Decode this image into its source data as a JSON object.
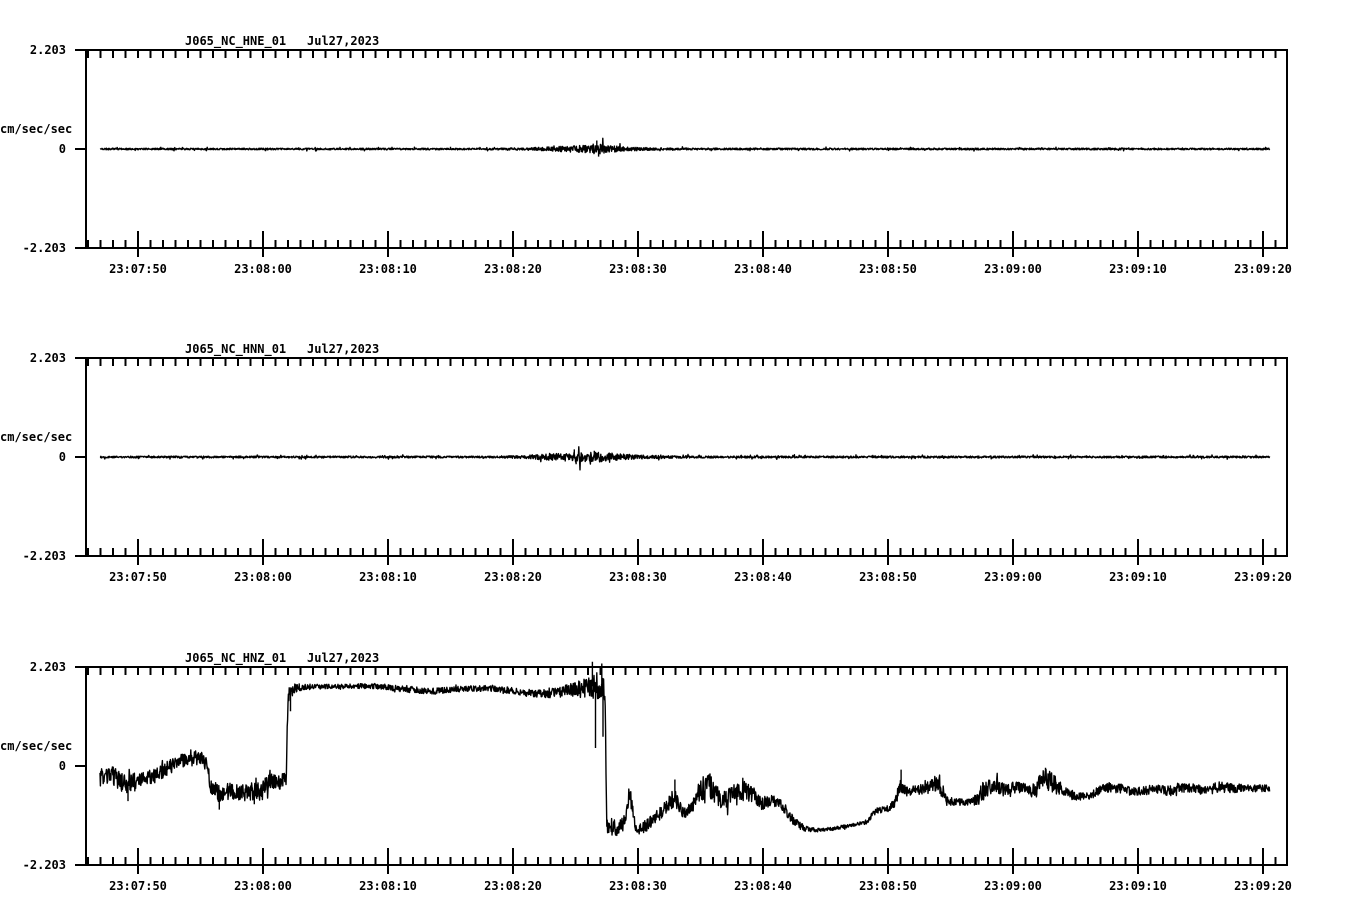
{
  "figure": {
    "background": "#ffffff",
    "ink": "#000000"
  },
  "chart_data": [
    {
      "type": "line",
      "station": "J065_NC_HNE_01",
      "date": "Jul27,2023",
      "ylabel": "cm/sec/sec",
      "yticks": [
        "2.203",
        "0",
        "-2.203"
      ],
      "ylim": [
        -2.203,
        2.203
      ],
      "xticklabels": [
        "23:07:50",
        "23:08:00",
        "23:08:10",
        "23:08:20",
        "23:08:30",
        "23:08:40",
        "23:08:50",
        "23:09:00",
        "23:09:10",
        "23:09:20"
      ],
      "trace_t_range": [
        -3.0,
        90.6
      ],
      "envelope": [
        [
          -3,
          0,
          0.018
        ],
        [
          28,
          0,
          0.018
        ],
        [
          31,
          0,
          0.028
        ],
        [
          32.5,
          0,
          0.045
        ],
        [
          33.8,
          0,
          0.06
        ],
        [
          35,
          0,
          0.075
        ],
        [
          36,
          0,
          0.09
        ],
        [
          36.8,
          0,
          0.13
        ],
        [
          37.6,
          0,
          0.08
        ],
        [
          38.6,
          0,
          0.055
        ],
        [
          39.8,
          0,
          0.038
        ],
        [
          41.5,
          0,
          0.026
        ],
        [
          44,
          0,
          0.02
        ],
        [
          90.6,
          0,
          0.018
        ]
      ],
      "spikes": [
        [
          36.7,
          0.19
        ],
        [
          36.85,
          -0.17
        ],
        [
          25.0,
          0.05
        ],
        [
          10.2,
          -0.05
        ]
      ]
    },
    {
      "type": "line",
      "station": "J065_NC_HNN_01",
      "date": "Jul27,2023",
      "ylabel": "cm/sec/sec",
      "yticks": [
        "2.203",
        "0",
        "-2.203"
      ],
      "ylim": [
        -2.203,
        2.203
      ],
      "xticklabels": [
        "23:07:50",
        "23:08:00",
        "23:08:10",
        "23:08:20",
        "23:08:30",
        "23:08:40",
        "23:08:50",
        "23:09:00",
        "23:09:10",
        "23:09:20"
      ],
      "trace_t_range": [
        -3.0,
        90.6
      ],
      "envelope": [
        [
          -3,
          0,
          0.02
        ],
        [
          28,
          0,
          0.02
        ],
        [
          30.5,
          0,
          0.032
        ],
        [
          32,
          0,
          0.055
        ],
        [
          33.3,
          0,
          0.075
        ],
        [
          34.5,
          0,
          0.09
        ],
        [
          35.2,
          0,
          0.13
        ],
        [
          36,
          0,
          0.095
        ],
        [
          36.7,
          0,
          0.12
        ],
        [
          37.7,
          0,
          0.09
        ],
        [
          38.8,
          0,
          0.065
        ],
        [
          40.2,
          0,
          0.045
        ],
        [
          42.5,
          0,
          0.03
        ],
        [
          46,
          0,
          0.022
        ],
        [
          90.6,
          0,
          0.02
        ]
      ],
      "spikes": [
        [
          34.9,
          0.17
        ],
        [
          35.05,
          -0.16
        ],
        [
          36.5,
          0.14
        ],
        [
          13.5,
          0.05
        ]
      ]
    },
    {
      "type": "line",
      "station": "J065_NC_HNZ_01",
      "date": "Jul27,2023",
      "ylabel": "cm/sec/sec",
      "yticks": [
        "2.203",
        "0",
        "-2.203"
      ],
      "ylim": [
        -2.203,
        2.203
      ],
      "xticklabels": [
        "23:07:50",
        "23:08:00",
        "23:08:10",
        "23:08:20",
        "23:08:30",
        "23:08:40",
        "23:08:50",
        "23:09:00",
        "23:09:10",
        "23:09:20"
      ],
      "trace_t_range": [
        -3.0,
        90.6
      ],
      "envelope": [
        [
          -3,
          -0.25,
          0.2
        ],
        [
          -2,
          -0.22,
          0.2
        ],
        [
          -1,
          -0.42,
          0.22
        ],
        [
          -0.5,
          -0.35,
          0.18
        ],
        [
          0.5,
          -0.28,
          0.16
        ],
        [
          1.5,
          -0.2,
          0.16
        ],
        [
          2.5,
          -0.02,
          0.16
        ],
        [
          3.5,
          0.12,
          0.16
        ],
        [
          4.3,
          0.22,
          0.16
        ],
        [
          5,
          0.15,
          0.18
        ],
        [
          5.5,
          0.05,
          0.15
        ],
        [
          5.8,
          -0.45,
          0.18
        ],
        [
          6.5,
          -0.62,
          0.2
        ],
        [
          7.5,
          -0.55,
          0.18
        ],
        [
          8.5,
          -0.6,
          0.2
        ],
        [
          9.5,
          -0.55,
          0.2
        ],
        [
          10.4,
          -0.4,
          0.2
        ],
        [
          11,
          -0.32,
          0.18
        ],
        [
          11.6,
          -0.35,
          0.18
        ],
        [
          11.85,
          -0.3,
          0.15
        ],
        [
          12,
          1.55,
          0.18
        ],
        [
          12.5,
          1.73,
          0.1
        ],
        [
          13.5,
          1.76,
          0.06
        ],
        [
          16,
          1.77,
          0.05
        ],
        [
          19,
          1.78,
          0.06
        ],
        [
          21.5,
          1.71,
          0.07
        ],
        [
          23.5,
          1.66,
          0.07
        ],
        [
          26,
          1.72,
          0.06
        ],
        [
          28.5,
          1.73,
          0.07
        ],
        [
          30,
          1.67,
          0.07
        ],
        [
          31.5,
          1.6,
          0.08
        ],
        [
          33,
          1.62,
          0.1
        ],
        [
          34.5,
          1.68,
          0.14
        ],
        [
          35.5,
          1.72,
          0.2
        ],
        [
          36.3,
          1.77,
          0.28
        ],
        [
          37,
          1.8,
          0.3
        ],
        [
          37.35,
          1.72,
          0.25
        ],
        [
          37.5,
          -1.35,
          0.25
        ],
        [
          38.2,
          -1.42,
          0.2
        ],
        [
          38.9,
          -1.25,
          0.16
        ],
        [
          39.35,
          -0.58,
          0.16
        ],
        [
          39.7,
          -1.3,
          0.18
        ],
        [
          40.2,
          -1.45,
          0.16
        ],
        [
          41,
          -1.25,
          0.14
        ],
        [
          41.8,
          -1.05,
          0.14
        ],
        [
          42.9,
          -0.72,
          0.22
        ],
        [
          43.6,
          -1.05,
          0.12
        ],
        [
          44.3,
          -0.95,
          0.14
        ],
        [
          45,
          -0.52,
          0.26
        ],
        [
          45.8,
          -0.45,
          0.28
        ],
        [
          46.5,
          -0.75,
          0.2
        ],
        [
          47.1,
          -0.78,
          0.22
        ],
        [
          47.7,
          -0.55,
          0.2
        ],
        [
          48.4,
          -0.55,
          0.22
        ],
        [
          49.1,
          -0.62,
          0.2
        ],
        [
          49.9,
          -0.85,
          0.14
        ],
        [
          50.7,
          -0.75,
          0.12
        ],
        [
          51.6,
          -0.9,
          0.12
        ],
        [
          52.4,
          -1.2,
          0.1
        ],
        [
          53.2,
          -1.38,
          0.07
        ],
        [
          54.3,
          -1.43,
          0.04
        ],
        [
          55.5,
          -1.4,
          0.04
        ],
        [
          57,
          -1.32,
          0.04
        ],
        [
          58.4,
          -1.24,
          0.05
        ],
        [
          58.9,
          -1,
          0.06
        ],
        [
          60,
          -0.95,
          0.07
        ],
        [
          60.6,
          -0.8,
          0.1
        ],
        [
          61,
          -0.42,
          0.22
        ],
        [
          61.4,
          -0.55,
          0.12
        ],
        [
          62.5,
          -0.53,
          0.1
        ],
        [
          63.2,
          -0.48,
          0.14
        ],
        [
          63.9,
          -0.4,
          0.22
        ],
        [
          64.3,
          -0.5,
          0.18
        ],
        [
          64.7,
          -0.78,
          0.1
        ],
        [
          65.5,
          -0.8,
          0.08
        ],
        [
          66.5,
          -0.82,
          0.08
        ],
        [
          67.1,
          -0.74,
          0.12
        ],
        [
          67.6,
          -0.55,
          0.2
        ],
        [
          68.2,
          -0.48,
          0.18
        ],
        [
          68.8,
          -0.44,
          0.18
        ],
        [
          69.4,
          -0.55,
          0.14
        ],
        [
          70.1,
          -0.48,
          0.14
        ],
        [
          70.8,
          -0.5,
          0.12
        ],
        [
          71.5,
          -0.55,
          0.14
        ],
        [
          72.2,
          -0.36,
          0.24
        ],
        [
          72.9,
          -0.3,
          0.26
        ],
        [
          73.5,
          -0.45,
          0.18
        ],
        [
          74.2,
          -0.6,
          0.12
        ],
        [
          75,
          -0.66,
          0.1
        ],
        [
          76,
          -0.68,
          0.08
        ],
        [
          76.8,
          -0.56,
          0.1
        ],
        [
          77.6,
          -0.46,
          0.12
        ],
        [
          78.5,
          -0.5,
          0.1
        ],
        [
          79.5,
          -0.56,
          0.1
        ],
        [
          80.5,
          -0.55,
          0.1
        ],
        [
          81.5,
          -0.5,
          0.1
        ],
        [
          82.5,
          -0.55,
          0.12
        ],
        [
          83.5,
          -0.48,
          0.1
        ],
        [
          84.5,
          -0.5,
          0.1
        ],
        [
          85.5,
          -0.55,
          0.1
        ],
        [
          86.5,
          -0.46,
          0.12
        ],
        [
          87.5,
          -0.5,
          0.1
        ],
        [
          88.5,
          -0.48,
          0.08
        ],
        [
          89.5,
          -0.5,
          0.08
        ],
        [
          90.6,
          -0.5,
          0.08
        ]
      ],
      "spikes": [
        [
          -0.8,
          -0.78
        ],
        [
          6.5,
          -0.97
        ],
        [
          9.3,
          -0.85
        ],
        [
          12.2,
          1.22
        ],
        [
          36.35,
          2.32
        ],
        [
          36.6,
          0.4
        ],
        [
          37.1,
          2.28
        ],
        [
          37.2,
          0.65
        ],
        [
          42.95,
          -0.3
        ],
        [
          61.05,
          -0.08
        ],
        [
          72.6,
          -0.04
        ]
      ]
    }
  ]
}
